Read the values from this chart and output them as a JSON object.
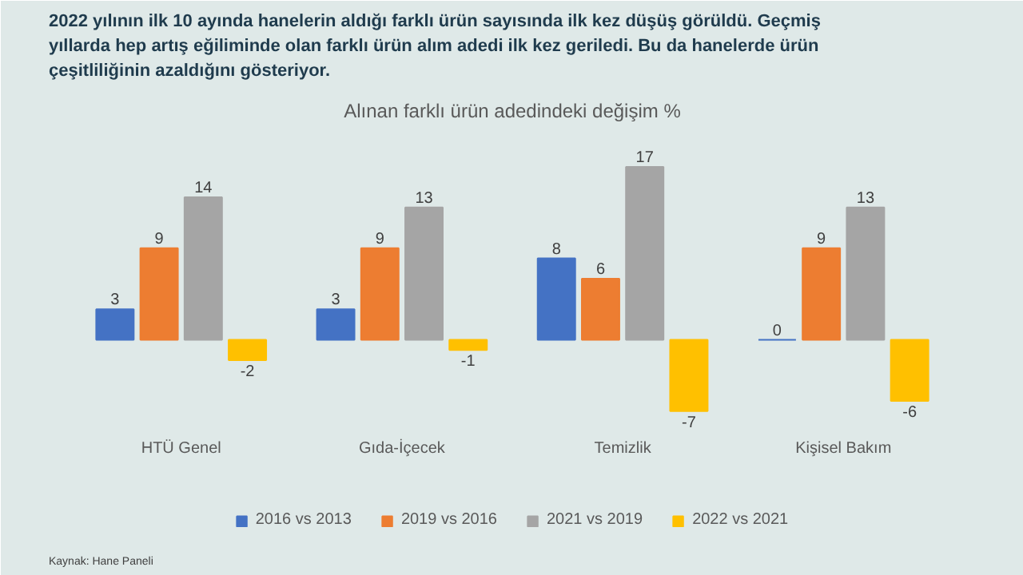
{
  "chart_data": {
    "type": "bar",
    "title": "2022 yılının ilk 10 ayında hanelerin aldığı farklı ürün sayısında ilk kez düşüş görüldü. Geçmiş yıllarda hep artış eğiliminde olan farklı ürün alım adedi ilk kez geriledi. Bu da hanelerde ürün çeşitliliğinin azaldığını gösteriyor.",
    "subtitle": "Alınan farklı ürün adedindeki değişim %",
    "annotations": [
      "Kaynak: Hane Paneli"
    ],
    "categories": [
      "HTÜ Genel",
      "Gıda-İçecek",
      "Temizlik",
      "Kişisel Bakım"
    ],
    "series": [
      {
        "name": "2016 vs 2013",
        "color": "#4472c4",
        "values": [
          3,
          3,
          8,
          0
        ]
      },
      {
        "name": "2019 vs 2016",
        "color": "#ed7d31",
        "values": [
          9,
          9,
          6,
          9
        ]
      },
      {
        "name": "2021 vs 2019",
        "color": "#a5a5a5",
        "values": [
          14,
          13,
          17,
          13
        ]
      },
      {
        "name": "2022 vs 2021",
        "color": "#ffc000",
        "values": [
          -2,
          -1,
          -7,
          -6
        ]
      }
    ],
    "data_labels": true,
    "legend": "bottom"
  }
}
